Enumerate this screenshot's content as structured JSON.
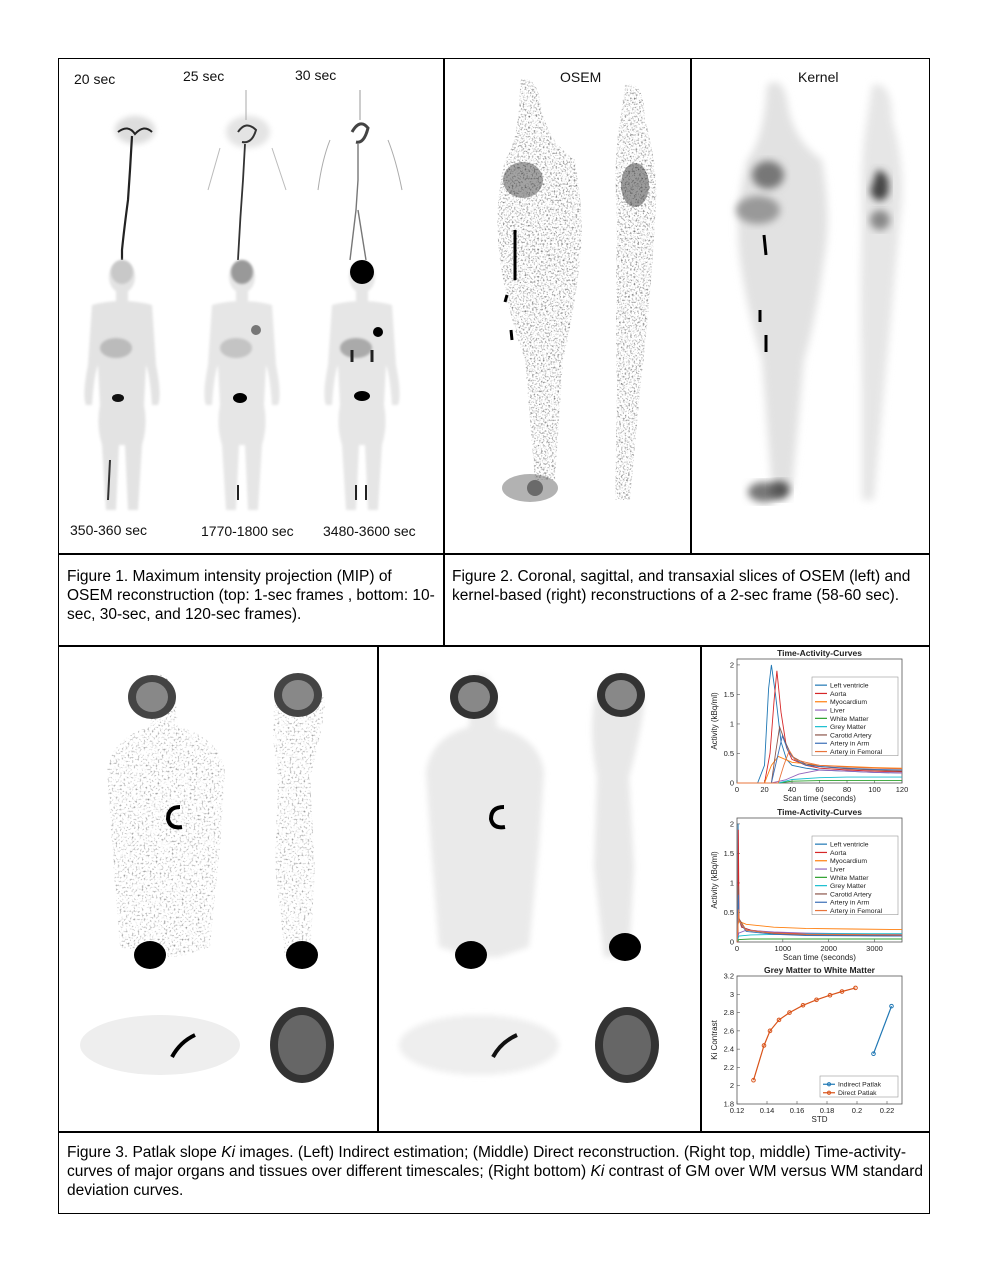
{
  "fig1": {
    "top_labels": [
      "20 sec",
      "25 sec",
      "30 sec"
    ],
    "bottom_labels": [
      "350-360 sec",
      "1770-1800 sec",
      "3480-3600 sec"
    ],
    "caption": "Figure 1. Maximum intensity projection (MIP) of OSEM reconstruction (top: 1-sec frames , bottom: 10-sec, 30-sec, and 120-sec frames)."
  },
  "fig2": {
    "labels": [
      "OSEM",
      "Kernel"
    ],
    "caption": "Figure 2. Coronal, sagittal, and transaxial slices of OSEM (left) and kernel-based (right) reconstructions of a 2-sec frame (58-60 sec)."
  },
  "fig3": {
    "caption_parts": [
      "Figure 3. Patlak slope ",
      "Ki",
      " images. (Left) Indirect estimation; (Middle) Direct reconstruction. (Right top, middle) Time-activity-curves of major organs and tissues over different timescales; (Right bottom) ",
      "Ki",
      " contrast of GM over WM versus WM standard deviation curves."
    ]
  },
  "chart_data": [
    {
      "type": "line",
      "title": "Time-Activity-Curves",
      "xlabel": "Scan time (seconds)",
      "ylabel": "Activity (kBq/ml)",
      "xlim": [
        0,
        120
      ],
      "ylim": [
        0,
        2.1
      ],
      "xticks": [
        0,
        20,
        40,
        60,
        80,
        100,
        120
      ],
      "yticks": [
        0,
        0.5,
        1,
        1.5,
        2
      ],
      "ytick_labels": [
        "0",
        "0.5",
        "1",
        "1.5",
        "2"
      ],
      "legend_position": "right",
      "series": [
        {
          "name": "Left ventricle",
          "color": "#1f77b4",
          "x": [
            0,
            15,
            20,
            23,
            25,
            28,
            32,
            36,
            40,
            50,
            60,
            80,
            100,
            120
          ],
          "y": [
            0,
            0,
            0.3,
            1.6,
            2.0,
            1.5,
            0.7,
            0.4,
            0.3,
            0.25,
            0.22,
            0.2,
            0.18,
            0.17
          ]
        },
        {
          "name": "Aorta",
          "color": "#d62728",
          "x": [
            0,
            20,
            24,
            27,
            29,
            32,
            36,
            40,
            50,
            60,
            80,
            100,
            120
          ],
          "y": [
            0,
            0,
            0.5,
            1.4,
            1.9,
            1.2,
            0.6,
            0.4,
            0.3,
            0.25,
            0.22,
            0.2,
            0.19
          ]
        },
        {
          "name": "Myocardium",
          "color": "#ff7f0e",
          "x": [
            0,
            20,
            25,
            30,
            40,
            60,
            80,
            100,
            120
          ],
          "y": [
            0,
            0,
            0.3,
            0.45,
            0.35,
            0.3,
            0.28,
            0.26,
            0.25
          ]
        },
        {
          "name": "Liver",
          "color": "#9467bd",
          "x": [
            0,
            25,
            35,
            45,
            60,
            80,
            100,
            120
          ],
          "y": [
            0,
            0,
            0.05,
            0.15,
            0.22,
            0.2,
            0.18,
            0.17
          ]
        },
        {
          "name": "White Matter",
          "color": "#2ca02c",
          "x": [
            0,
            30,
            40,
            60,
            80,
            100,
            120
          ],
          "y": [
            0,
            0,
            0.03,
            0.04,
            0.04,
            0.04,
            0.04
          ]
        },
        {
          "name": "Grey Matter",
          "color": "#17becf",
          "x": [
            0,
            30,
            40,
            60,
            80,
            100,
            120
          ],
          "y": [
            0,
            0,
            0.06,
            0.09,
            0.1,
            0.1,
            0.1
          ]
        },
        {
          "name": "Carotid Artery",
          "color": "#8c564b",
          "x": [
            0,
            25,
            28,
            31,
            35,
            40,
            50,
            60,
            80,
            100,
            120
          ],
          "y": [
            0,
            0,
            0.5,
            0.95,
            0.7,
            0.45,
            0.32,
            0.28,
            0.24,
            0.22,
            0.2
          ]
        },
        {
          "name": "Artery in Arm",
          "color": "#3b6fb6",
          "x": [
            0,
            25,
            29,
            33,
            37,
            42,
            50,
            60,
            80,
            100,
            120
          ],
          "y": [
            0,
            0,
            0.4,
            0.8,
            0.55,
            0.4,
            0.3,
            0.28,
            0.25,
            0.23,
            0.22
          ]
        },
        {
          "name": "Artery in Femoral",
          "color": "#e8743b",
          "x": [
            0,
            30,
            34,
            38,
            42,
            50,
            60,
            80,
            100,
            120
          ],
          "y": [
            0,
            0,
            0.3,
            0.55,
            0.4,
            0.35,
            0.3,
            0.27,
            0.25,
            0.24
          ]
        }
      ]
    },
    {
      "type": "line",
      "title": "Time-Activity-Curves",
      "xlabel": "Scan time (seconds)",
      "ylabel": "Activity (kBq/ml)",
      "xlim": [
        0,
        3600
      ],
      "ylim": [
        0,
        2.1
      ],
      "xticks": [
        0,
        1000,
        2000,
        3000
      ],
      "yticks": [
        0,
        0.5,
        1,
        1.5,
        2
      ],
      "ytick_labels": [
        "0",
        "0.5",
        "1",
        "1.5",
        "2"
      ],
      "legend_position": "right",
      "series": [
        {
          "name": "Left ventricle",
          "color": "#1f77b4",
          "x": [
            0,
            20,
            25,
            40,
            100,
            300,
            800,
            1500,
            2500,
            3600
          ],
          "y": [
            0,
            0,
            2.0,
            0.4,
            0.25,
            0.2,
            0.15,
            0.13,
            0.12,
            0.11
          ]
        },
        {
          "name": "Aorta",
          "color": "#d62728",
          "x": [
            0,
            20,
            28,
            45,
            100,
            300,
            800,
            1500,
            2500,
            3600
          ],
          "y": [
            0,
            0,
            1.9,
            0.4,
            0.25,
            0.2,
            0.16,
            0.14,
            0.13,
            0.12
          ]
        },
        {
          "name": "Myocardium",
          "color": "#ff7f0e",
          "x": [
            0,
            25,
            40,
            200,
            800,
            1500,
            2500,
            3600
          ],
          "y": [
            0,
            0.3,
            0.35,
            0.3,
            0.25,
            0.23,
            0.22,
            0.21
          ]
        },
        {
          "name": "Liver",
          "color": "#9467bd",
          "x": [
            0,
            40,
            200,
            800,
            1500,
            2500,
            3600
          ],
          "y": [
            0,
            0.15,
            0.2,
            0.17,
            0.15,
            0.14,
            0.13
          ]
        },
        {
          "name": "White Matter",
          "color": "#2ca02c",
          "x": [
            0,
            40,
            300,
            1000,
            2000,
            3600
          ],
          "y": [
            0,
            0.04,
            0.05,
            0.05,
            0.05,
            0.05
          ]
        },
        {
          "name": "Grey Matter",
          "color": "#17becf",
          "x": [
            0,
            40,
            300,
            1000,
            2000,
            3600
          ],
          "y": [
            0,
            0.1,
            0.12,
            0.13,
            0.14,
            0.14
          ]
        },
        {
          "name": "Carotid Artery",
          "color": "#8c564b",
          "x": [
            0,
            28,
            40,
            200,
            800,
            1500,
            3600
          ],
          "y": [
            0,
            0.95,
            0.4,
            0.2,
            0.14,
            0.12,
            0.1
          ]
        },
        {
          "name": "Artery in Arm",
          "color": "#3b6fb6",
          "x": [
            0,
            30,
            45,
            200,
            800,
            1500,
            3600
          ],
          "y": [
            0,
            0.8,
            0.35,
            0.18,
            0.13,
            0.11,
            0.1
          ]
        },
        {
          "name": "Artery in Femoral",
          "color": "#e8743b",
          "x": [
            0,
            35,
            50,
            200,
            800,
            1500,
            3600
          ],
          "y": [
            0,
            0.55,
            0.35,
            0.2,
            0.15,
            0.13,
            0.12
          ]
        }
      ]
    },
    {
      "type": "line",
      "title": "Grey Matter to White Matter",
      "xlabel": "STD",
      "ylabel": "Ki Contrast",
      "xlim": [
        0.12,
        0.23
      ],
      "ylim": [
        1.8,
        3.2
      ],
      "xticks": [
        0.12,
        0.14,
        0.16,
        0.18,
        0.2,
        0.22
      ],
      "xtick_labels": [
        "0.12",
        "0.14",
        "0.16",
        "0.18",
        "0.2",
        "0.22"
      ],
      "yticks": [
        1.8,
        2,
        2.2,
        2.4,
        2.6,
        2.8,
        3,
        3.2
      ],
      "ytick_labels": [
        "1.8",
        "2",
        "2.2",
        "2.4",
        "2.6",
        "2.8",
        "3",
        "3.2"
      ],
      "legend_position": "bottom-right",
      "series": [
        {
          "name": "Indirect Patlak",
          "color": "#1f77b4",
          "x": [
            0.211,
            0.223
          ],
          "y": [
            2.35,
            2.87
          ]
        },
        {
          "name": "Direct Patlak",
          "color": "#d95319",
          "x": [
            0.131,
            0.138,
            0.142,
            0.148,
            0.155,
            0.164,
            0.173,
            0.182,
            0.19,
            0.199
          ],
          "y": [
            2.06,
            2.44,
            2.6,
            2.72,
            2.8,
            2.88,
            2.94,
            2.99,
            3.03,
            3.07
          ]
        }
      ]
    }
  ]
}
